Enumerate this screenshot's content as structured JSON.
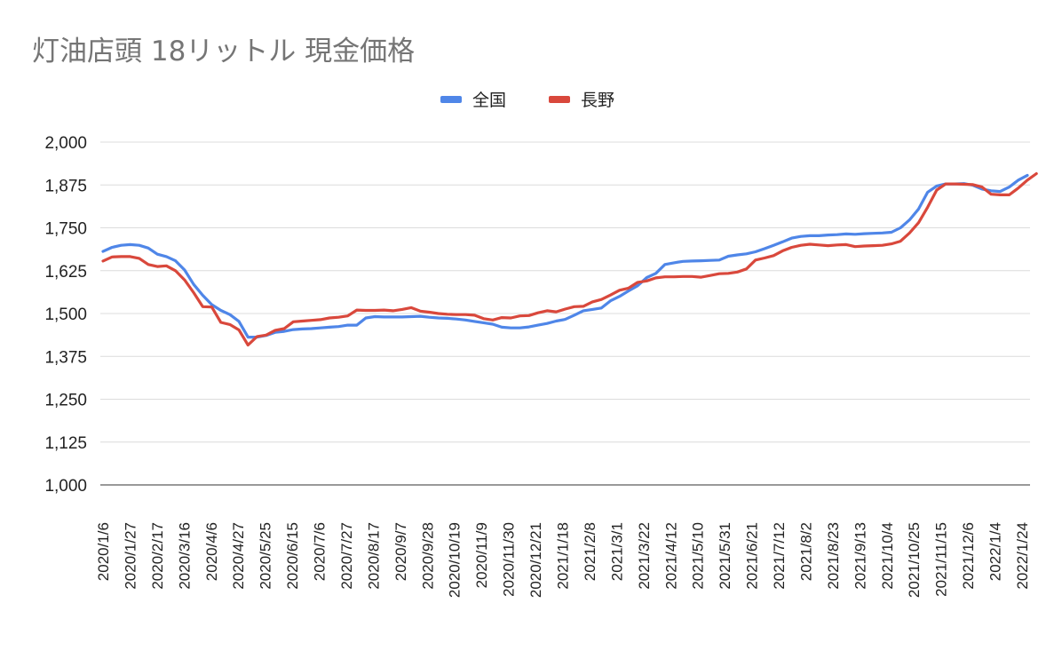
{
  "chart_data": {
    "type": "line",
    "title": "灯油店頭 18リットル 現金価格",
    "xlabel": "",
    "ylabel": "",
    "ylim": [
      1000,
      2000
    ],
    "yticks": [
      "2,000",
      "1,875",
      "1,750",
      "1,625",
      "1,500",
      "1,375",
      "1,250",
      "1,125",
      "1,000"
    ],
    "ytick_values": [
      2000,
      1875,
      1750,
      1625,
      1500,
      1375,
      1250,
      1125,
      1000
    ],
    "grid": true,
    "legend_position": "top-center",
    "x_tick_labels": [
      "2020/1/6",
      "2020/1/27",
      "2020/2/17",
      "2020/3/16",
      "2020/4/6",
      "2020/4/27",
      "2020/5/25",
      "2020/6/15",
      "2020/7/6",
      "2020/7/27",
      "2020/8/17",
      "2020/9/7",
      "2020/9/28",
      "2020/10/19",
      "2020/11/9",
      "2020/11/30",
      "2020/12/21",
      "2021/1/18",
      "2021/2/8",
      "2021/3/1",
      "2021/3/22",
      "2021/4/12",
      "2021/5/10",
      "2021/5/31",
      "2021/6/21",
      "2021/7/12",
      "2021/8/2",
      "2021/8/23",
      "2021/9/13",
      "2021/10/4",
      "2021/10/25",
      "2021/11/15",
      "2021/12/6",
      "2022/1/4",
      "2022/1/24"
    ],
    "series": [
      {
        "name": "全国",
        "color": "#4f86e8",
        "values": [
          1681,
          1693,
          1699,
          1701,
          1699,
          1691,
          1673,
          1666,
          1654,
          1627,
          1585,
          1553,
          1526,
          1509,
          1497,
          1477,
          1431,
          1431,
          1436,
          1445,
          1448,
          1453,
          1455,
          1456,
          1458,
          1460,
          1462,
          1466,
          1466,
          1487,
          1491,
          1490,
          1490,
          1490,
          1491,
          1492,
          1489,
          1487,
          1486,
          1484,
          1481,
          1477,
          1473,
          1469,
          1460,
          1458,
          1458,
          1461,
          1466,
          1471,
          1478,
          1483,
          1495,
          1508,
          1512,
          1516,
          1537,
          1550,
          1566,
          1581,
          1605,
          1617,
          1643,
          1648,
          1652,
          1653,
          1654,
          1655,
          1656,
          1667,
          1671,
          1674,
          1680,
          1689,
          1699,
          1709,
          1720,
          1725,
          1727,
          1727,
          1729,
          1730,
          1732,
          1731,
          1733,
          1734,
          1735,
          1737,
          1750,
          1773,
          1805,
          1854,
          1872,
          1878,
          1878,
          1879,
          1874,
          1863,
          1858,
          1856,
          1869,
          1889,
          1903
        ]
      },
      {
        "name": "長野",
        "color": "#d9483c",
        "values": [
          1653,
          1665,
          1666,
          1666,
          1661,
          1643,
          1637,
          1639,
          1625,
          1598,
          1561,
          1520,
          1519,
          1474,
          1468,
          1452,
          1408,
          1433,
          1437,
          1451,
          1456,
          1476,
          1478,
          1480,
          1482,
          1487,
          1489,
          1493,
          1510,
          1509,
          1509,
          1510,
          1508,
          1512,
          1517,
          1507,
          1504,
          1500,
          1498,
          1497,
          1497,
          1495,
          1485,
          1481,
          1488,
          1487,
          1493,
          1494,
          1502,
          1508,
          1505,
          1513,
          1520,
          1521,
          1534,
          1541,
          1554,
          1568,
          1574,
          1591,
          1595,
          1604,
          1607,
          1607,
          1608,
          1608,
          1606,
          1611,
          1616,
          1617,
          1621,
          1630,
          1656,
          1662,
          1669,
          1683,
          1693,
          1699,
          1702,
          1700,
          1698,
          1700,
          1701,
          1695,
          1697,
          1698,
          1699,
          1703,
          1711,
          1735,
          1765,
          1810,
          1860,
          1878,
          1878,
          1877,
          1876,
          1869,
          1848,
          1846,
          1846,
          1866,
          1889,
          1908
        ]
      }
    ]
  }
}
